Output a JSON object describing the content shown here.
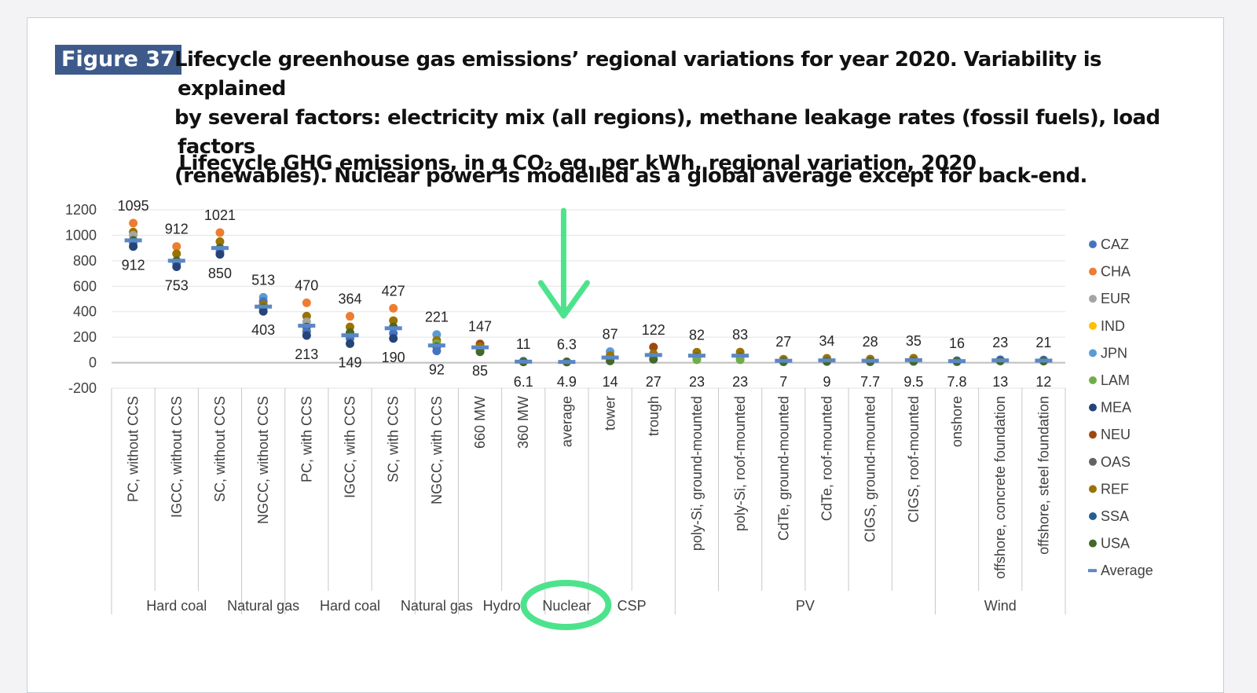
{
  "figure": {
    "label": "Figure 37",
    "caption_lines": [
      "Lifecycle greenhouse gas emissions’ regional variations for year 2020. Variability is explained",
      "by several factors: electricity mix (all regions), methane leakage rates (fossil fuels), load factors",
      "(renewables). Nuclear power is modelled as a global average except for back-end."
    ]
  },
  "colors": {
    "accent_green": "#4de38c",
    "badge_bg": "#3d5a8a",
    "average_marker": "#5b87c5"
  },
  "annotations": {
    "arrow": "green-down-arrow",
    "highlight_ellipse": "Nuclear"
  },
  "chart_data": {
    "type": "scatter",
    "title": "Lifecycle GHG emissions, in g CO₂ eq. per kWh, regional variation, 2020",
    "xlabel": "",
    "ylabel": "",
    "ylim": [
      -200,
      1200
    ],
    "yticks": [
      -200,
      0,
      200,
      400,
      600,
      800,
      1000,
      1200
    ],
    "grid": true,
    "legend_position": "right",
    "legend": [
      {
        "name": "CAZ",
        "color": "#4472c4"
      },
      {
        "name": "CHA",
        "color": "#ed7d31"
      },
      {
        "name": "EUR",
        "color": "#a5a5a5"
      },
      {
        "name": "IND",
        "color": "#ffc000"
      },
      {
        "name": "JPN",
        "color": "#5b9bd5"
      },
      {
        "name": "LAM",
        "color": "#70ad47"
      },
      {
        "name": "MEA",
        "color": "#264478"
      },
      {
        "name": "NEU",
        "color": "#9e480e"
      },
      {
        "name": "OAS",
        "color": "#636363"
      },
      {
        "name": "REF",
        "color": "#997300"
      },
      {
        "name": "SSA",
        "color": "#255e91"
      },
      {
        "name": "USA",
        "color": "#43682b"
      },
      {
        "name": "Average",
        "color": "#5b87c5"
      }
    ],
    "groups": [
      {
        "label": "Hard coal",
        "count": 3
      },
      {
        "label": "Natural gas",
        "count": 1
      },
      {
        "label": "Hard coal",
        "count": 3
      },
      {
        "label": "Natural gas",
        "count": 1
      },
      {
        "label": "Hydro",
        "count": 2
      },
      {
        "label": "Nuclear",
        "count": 1
      },
      {
        "label": "CSP",
        "count": 2
      },
      {
        "label": "PV",
        "count": 6
      },
      {
        "label": "Wind",
        "count": 3
      }
    ],
    "categories": [
      {
        "label": "PC, without CCS",
        "max": 1095,
        "min": 912,
        "max_label": "1095",
        "min_label": "912",
        "avg": 960,
        "points": [
          {
            "s": "CHA",
            "v": 1095
          },
          {
            "s": "REF",
            "v": 1025
          },
          {
            "s": "EUR",
            "v": 1000
          },
          {
            "s": "USA",
            "v": 960
          },
          {
            "s": "CAZ",
            "v": 940
          },
          {
            "s": "MEA",
            "v": 912
          }
        ]
      },
      {
        "label": "IGCC, without CCS",
        "max": 912,
        "min": 753,
        "max_label": "912",
        "min_label": "753",
        "avg": 800,
        "points": [
          {
            "s": "CHA",
            "v": 912
          },
          {
            "s": "REF",
            "v": 855
          },
          {
            "s": "USA",
            "v": 800
          },
          {
            "s": "CAZ",
            "v": 780
          },
          {
            "s": "MEA",
            "v": 753
          }
        ]
      },
      {
        "label": "SC, without CCS",
        "max": 1021,
        "min": 850,
        "max_label": "1021",
        "min_label": "850",
        "avg": 900,
        "points": [
          {
            "s": "CHA",
            "v": 1021
          },
          {
            "s": "REF",
            "v": 950
          },
          {
            "s": "USA",
            "v": 900
          },
          {
            "s": "CAZ",
            "v": 870
          },
          {
            "s": "MEA",
            "v": 850
          }
        ]
      },
      {
        "label": "NGCC, without CCS",
        "max": 513,
        "min": 403,
        "max_label": "513",
        "min_label": "403",
        "avg": 440,
        "points": [
          {
            "s": "JPN",
            "v": 513
          },
          {
            "s": "CAZ",
            "v": 480
          },
          {
            "s": "REF",
            "v": 455
          },
          {
            "s": "USA",
            "v": 430
          },
          {
            "s": "MEA",
            "v": 403
          }
        ]
      },
      {
        "label": "PC, with CCS",
        "max": 470,
        "min": 213,
        "max_label": "470",
        "min_label": "213",
        "avg": 290,
        "points": [
          {
            "s": "CHA",
            "v": 470
          },
          {
            "s": "REF",
            "v": 365
          },
          {
            "s": "EUR",
            "v": 320
          },
          {
            "s": "USA",
            "v": 280
          },
          {
            "s": "CAZ",
            "v": 245
          },
          {
            "s": "MEA",
            "v": 213
          }
        ]
      },
      {
        "label": "IGCC, with CCS",
        "max": 364,
        "min": 149,
        "max_label": "364",
        "min_label": "149",
        "avg": 215,
        "points": [
          {
            "s": "CHA",
            "v": 364
          },
          {
            "s": "REF",
            "v": 280
          },
          {
            "s": "USA",
            "v": 235
          },
          {
            "s": "CAZ",
            "v": 190
          },
          {
            "s": "MEA",
            "v": 149
          }
        ]
      },
      {
        "label": "SC, with CCS",
        "max": 427,
        "min": 190,
        "max_label": "427",
        "min_label": "190",
        "avg": 270,
        "points": [
          {
            "s": "CHA",
            "v": 427
          },
          {
            "s": "REF",
            "v": 330
          },
          {
            "s": "USA",
            "v": 280
          },
          {
            "s": "CAZ",
            "v": 230
          },
          {
            "s": "MEA",
            "v": 190
          }
        ]
      },
      {
        "label": "NGCC, with CCS",
        "max": 221,
        "min": 92,
        "max_label": "221",
        "min_label": "92",
        "avg": 135,
        "points": [
          {
            "s": "JPN",
            "v": 221
          },
          {
            "s": "REF",
            "v": 175
          },
          {
            "s": "LAM",
            "v": 150
          },
          {
            "s": "USA",
            "v": 125
          },
          {
            "s": "CAZ",
            "v": 92
          }
        ]
      },
      {
        "label": "660 MW",
        "max": 147,
        "min": 85,
        "max_label": "147",
        "min_label": "85",
        "avg": 120,
        "points": [
          {
            "s": "NEU",
            "v": 147
          },
          {
            "s": "REF",
            "v": 125
          },
          {
            "s": "LAM",
            "v": 100
          },
          {
            "s": "USA",
            "v": 85
          }
        ]
      },
      {
        "label": "360 MW",
        "max": 11,
        "min": 6.1,
        "max_label": "11",
        "min_label": "6.1",
        "avg": 8,
        "points": [
          {
            "s": "CAZ",
            "v": 11
          },
          {
            "s": "USA",
            "v": 6.1
          }
        ]
      },
      {
        "label": "average",
        "max": 6.3,
        "min": 4.9,
        "max_label": "6.3",
        "min_label": "4.9",
        "avg": 5.5,
        "points": [
          {
            "s": "CAZ",
            "v": 6.3
          },
          {
            "s": "USA",
            "v": 4.9
          }
        ]
      },
      {
        "label": "tower",
        "max": 87,
        "min": 14,
        "max_label": "87",
        "min_label": "14",
        "avg": 40,
        "points": [
          {
            "s": "JPN",
            "v": 87
          },
          {
            "s": "REF",
            "v": 55
          },
          {
            "s": "USA",
            "v": 14
          }
        ]
      },
      {
        "label": "trough",
        "max": 122,
        "min": 27,
        "max_label": "122",
        "min_label": "27",
        "avg": 60,
        "points": [
          {
            "s": "NEU",
            "v": 122
          },
          {
            "s": "REF",
            "v": 70
          },
          {
            "s": "USA",
            "v": 27
          }
        ]
      },
      {
        "label": "poly-Si, ground-mounted",
        "max": 82,
        "min": 23,
        "max_label": "82",
        "min_label": "23",
        "avg": 55,
        "points": [
          {
            "s": "REF",
            "v": 82
          },
          {
            "s": "USA",
            "v": 45
          },
          {
            "s": "LAM",
            "v": 23
          }
        ]
      },
      {
        "label": "poly-Si, roof-mounted",
        "max": 83,
        "min": 23,
        "max_label": "83",
        "min_label": "23",
        "avg": 55,
        "points": [
          {
            "s": "REF",
            "v": 83
          },
          {
            "s": "USA",
            "v": 45
          },
          {
            "s": "LAM",
            "v": 23
          }
        ]
      },
      {
        "label": "CdTe, ground-mounted",
        "max": 27,
        "min": 7,
        "max_label": "27",
        "min_label": "7",
        "avg": 15,
        "points": [
          {
            "s": "REF",
            "v": 27
          },
          {
            "s": "USA",
            "v": 7
          }
        ]
      },
      {
        "label": "CdTe, roof-mounted",
        "max": 34,
        "min": 9,
        "max_label": "34",
        "min_label": "9",
        "avg": 18,
        "points": [
          {
            "s": "REF",
            "v": 34
          },
          {
            "s": "USA",
            "v": 9
          }
        ]
      },
      {
        "label": "CIGS, ground-mounted",
        "max": 28,
        "min": 7.7,
        "max_label": "28",
        "min_label": "7.7",
        "avg": 15,
        "points": [
          {
            "s": "REF",
            "v": 28
          },
          {
            "s": "USA",
            "v": 7.7
          }
        ]
      },
      {
        "label": "CIGS, roof-mounted",
        "max": 35,
        "min": 9.5,
        "max_label": "35",
        "min_label": "9.5",
        "avg": 20,
        "points": [
          {
            "s": "REF",
            "v": 35
          },
          {
            "s": "USA",
            "v": 9.5
          }
        ]
      },
      {
        "label": "onshore",
        "max": 16,
        "min": 7.8,
        "max_label": "16",
        "min_label": "7.8",
        "avg": 12,
        "points": [
          {
            "s": "CAZ",
            "v": 16
          },
          {
            "s": "USA",
            "v": 7.8
          }
        ]
      },
      {
        "label": "offshore, concrete foundation",
        "max": 23,
        "min": 13,
        "max_label": "23",
        "min_label": "13",
        "avg": 18,
        "points": [
          {
            "s": "CAZ",
            "v": 23
          },
          {
            "s": "USA",
            "v": 13
          }
        ]
      },
      {
        "label": "offshore, steel foundation",
        "max": 21,
        "min": 12,
        "max_label": "21",
        "min_label": "12",
        "avg": 16,
        "points": [
          {
            "s": "CAZ",
            "v": 21
          },
          {
            "s": "USA",
            "v": 12
          }
        ]
      }
    ]
  }
}
